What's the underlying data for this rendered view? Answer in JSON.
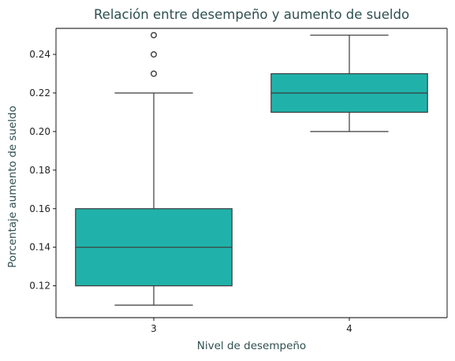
{
  "chart_data": {
    "type": "box",
    "title": "Relación entre desempeño y aumento de sueldo",
    "xlabel": "Nivel de desempeño",
    "ylabel": "Porcentaje aumento de sueldo",
    "categories": [
      "3",
      "4"
    ],
    "ylim": [
      0.1035,
      0.2535
    ],
    "yticks": [
      0.12,
      0.14,
      0.16,
      0.18,
      0.2,
      0.22,
      0.24
    ],
    "ytick_labels": [
      "0.12",
      "0.14",
      "0.16",
      "0.18",
      "0.20",
      "0.22",
      "0.24"
    ],
    "grid": false,
    "legend": "none",
    "box_color": "#20b2aa",
    "line_color": "#3b3b3b",
    "boxes": [
      {
        "category": "3",
        "whislo": 0.11,
        "q1": 0.12,
        "median": 0.14,
        "q3": 0.16,
        "whishi": 0.22,
        "fliers": [
          0.23,
          0.24,
          0.25
        ]
      },
      {
        "category": "4",
        "whislo": 0.2,
        "q1": 0.21,
        "median": 0.22,
        "q3": 0.23,
        "whishi": 0.25,
        "fliers": []
      }
    ]
  }
}
